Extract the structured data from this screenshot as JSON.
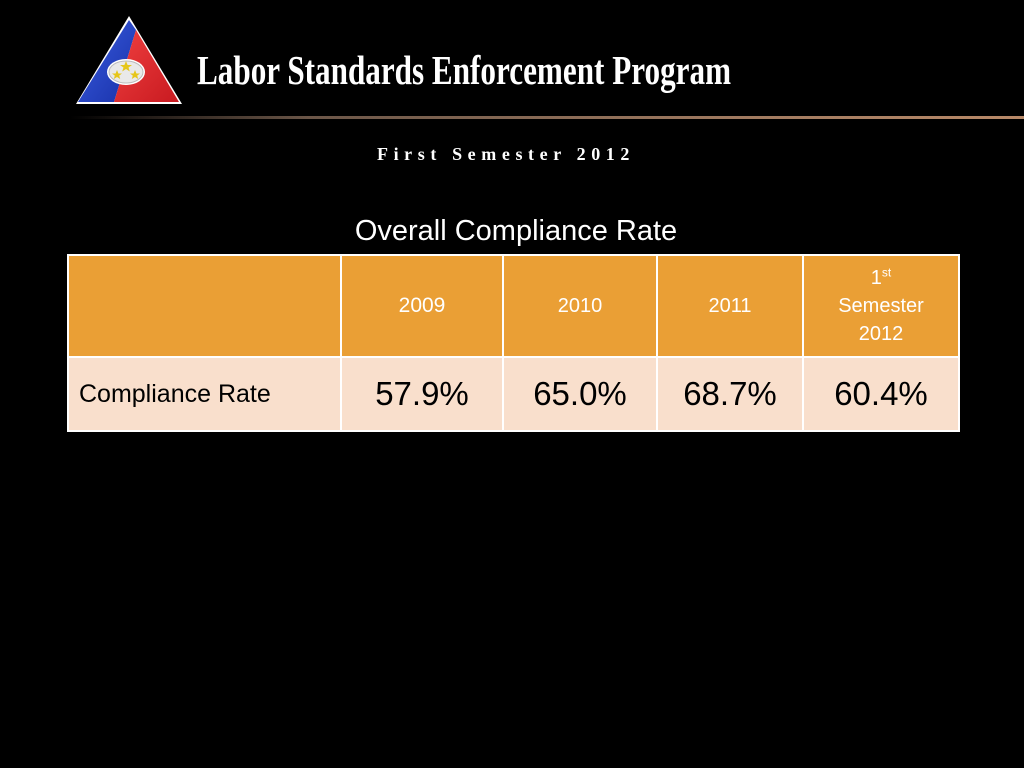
{
  "header": {
    "title": "Labor Standards Enforcement Program",
    "logo_icon": "dole-triangle-logo-icon"
  },
  "subtitle": "First Semester 2012",
  "table": {
    "title": "Overall Compliance Rate",
    "columns": [
      {
        "label": "",
        "sup": "",
        "rest": ""
      },
      {
        "label": "2009"
      },
      {
        "label": "2010"
      },
      {
        "label": "2011"
      },
      {
        "label": "1",
        "sup": "st",
        "rest_line1": "Semester",
        "rest_line2": "2012"
      }
    ],
    "rows": [
      {
        "label": "Compliance Rate",
        "values": [
          "57.9%",
          "65.0%",
          "68.7%",
          "60.4%"
        ]
      }
    ]
  },
  "colors": {
    "background": "#000000",
    "header_fill": "#ea9f35",
    "row_fill": "#f9dfcc",
    "logo_blue": "#1f3fbf",
    "logo_red": "#e0232a"
  }
}
